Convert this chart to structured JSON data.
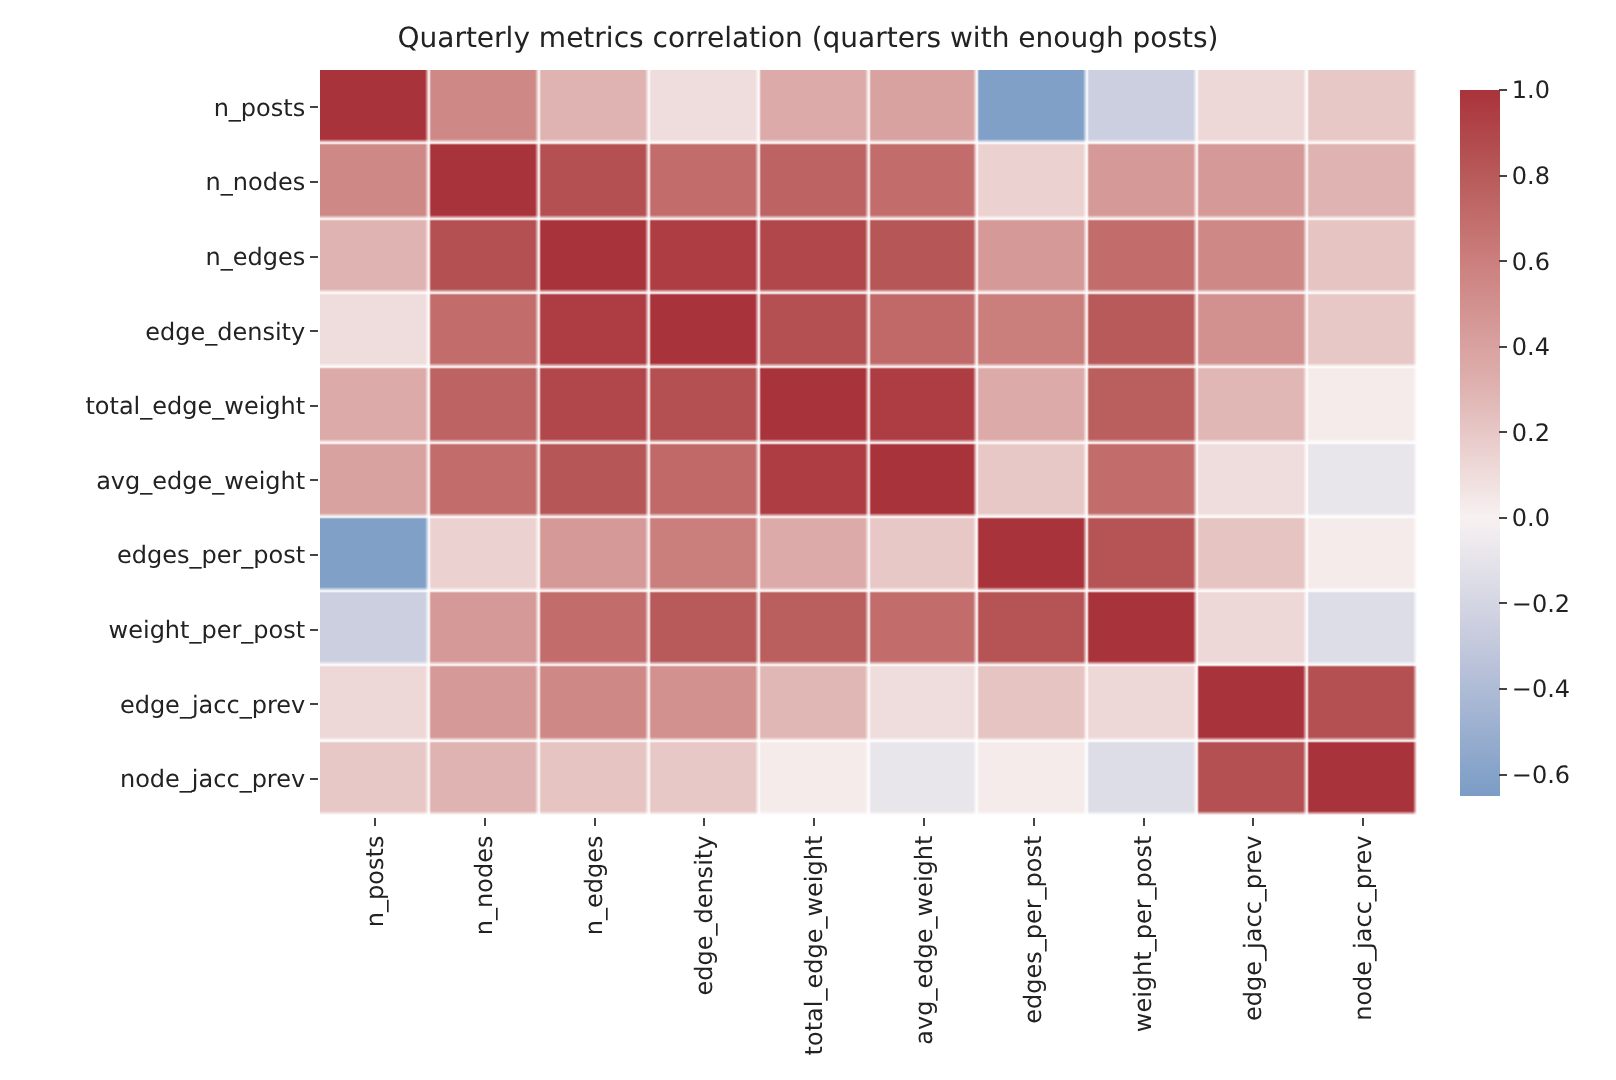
{
  "chart_data": {
    "type": "heatmap",
    "title": "Quarterly metrics correlation (quarters with enough posts)",
    "categories": [
      "n_posts",
      "n_nodes",
      "n_edges",
      "edge_density",
      "total_edge_weight",
      "avg_edge_weight",
      "edges_per_post",
      "weight_per_post",
      "edge_jacc_prev",
      "node_jacc_prev"
    ],
    "y_categories": [
      "n_posts",
      "n_nodes",
      "n_edges",
      "edge_density",
      "total_edge_weight",
      "avg_edge_weight",
      "edges_per_post",
      "weight_per_post",
      "edge_jacc_prev",
      "node_jacc_prev"
    ],
    "cells": [
      [
        1.0,
        0.55,
        0.3,
        0.1,
        0.35,
        0.4,
        -0.62,
        -0.25,
        0.12,
        0.2
      ],
      [
        0.55,
        1.0,
        0.85,
        0.7,
        0.75,
        0.7,
        0.15,
        0.45,
        0.45,
        0.3
      ],
      [
        0.3,
        0.85,
        1.0,
        0.95,
        0.9,
        0.82,
        0.45,
        0.7,
        0.55,
        0.22
      ],
      [
        0.1,
        0.7,
        0.95,
        1.0,
        0.85,
        0.72,
        0.6,
        0.8,
        0.5,
        0.2
      ],
      [
        0.35,
        0.75,
        0.9,
        0.85,
        1.0,
        0.95,
        0.35,
        0.78,
        0.28,
        0.03
      ],
      [
        0.4,
        0.7,
        0.82,
        0.72,
        0.95,
        1.0,
        0.2,
        0.7,
        0.1,
        -0.08
      ],
      [
        -0.62,
        0.15,
        0.45,
        0.6,
        0.35,
        0.2,
        1.0,
        0.83,
        0.22,
        0.03
      ],
      [
        -0.25,
        0.45,
        0.7,
        0.8,
        0.78,
        0.7,
        0.83,
        1.0,
        0.12,
        -0.15
      ],
      [
        0.12,
        0.45,
        0.55,
        0.5,
        0.28,
        0.1,
        0.22,
        0.12,
        1.0,
        0.85
      ],
      [
        0.2,
        0.3,
        0.22,
        0.2,
        0.03,
        -0.08,
        0.03,
        -0.15,
        0.85,
        1.0
      ]
    ],
    "clim": [
      -0.65,
      1.0
    ],
    "cticks": [
      {
        "value": -0.6,
        "label": "−0.6"
      },
      {
        "value": -0.4,
        "label": "−0.4"
      },
      {
        "value": -0.2,
        "label": "−0.2"
      },
      {
        "value": 0,
        "label": "0.0"
      },
      0.2,
      0.4,
      0.6,
      0.8,
      {
        "value": 1,
        "label": "1.0"
      }
    ]
  }
}
